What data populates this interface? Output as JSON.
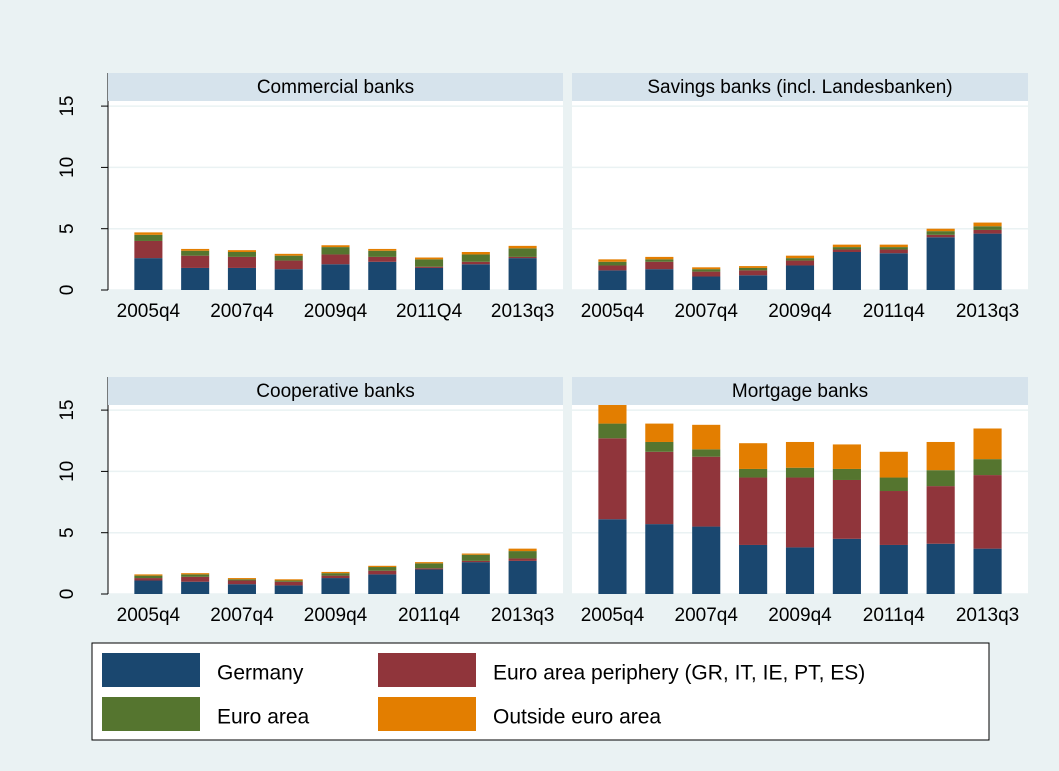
{
  "chart_data": [
    {
      "type": "bar",
      "stacked": true,
      "title": "Commercial banks",
      "categories": [
        "2005q4",
        null,
        "2007q4",
        null,
        "2009q4",
        null,
        "2011Q4",
        null,
        "2013q3"
      ],
      "ylim": [
        0,
        17.7
      ],
      "yticks": [
        0,
        5,
        10,
        15
      ],
      "grid": true,
      "series": [
        {
          "name": "Germany",
          "color": "#1a476f",
          "values": [
            2.6,
            1.8,
            1.8,
            1.7,
            2.1,
            2.3,
            1.8,
            2.1,
            2.6
          ]
        },
        {
          "name": "Euro area periphery (GR, IT, IE, PT, ES)",
          "color": "#90353b",
          "values": [
            1.4,
            1.0,
            0.9,
            0.7,
            0.8,
            0.4,
            0.1,
            0.2,
            0.1
          ]
        },
        {
          "name": "Euro area",
          "color": "#55752f",
          "values": [
            0.5,
            0.4,
            0.4,
            0.4,
            0.6,
            0.5,
            0.6,
            0.6,
            0.7
          ]
        },
        {
          "name": "Outside euro area",
          "color": "#e37e00",
          "values": [
            0.2,
            0.15,
            0.15,
            0.15,
            0.15,
            0.15,
            0.15,
            0.2,
            0.2
          ]
        }
      ]
    },
    {
      "type": "bar",
      "stacked": true,
      "title": "Savings banks (incl. Landesbanken)",
      "categories": [
        "2005q4",
        null,
        "2007q4",
        null,
        "2009q4",
        null,
        "2011q4",
        null,
        "2013q3"
      ],
      "ylim": [
        0,
        17.7
      ],
      "yticks": [
        0,
        5,
        10,
        15
      ],
      "grid": true,
      "series": [
        {
          "name": "Germany",
          "color": "#1a476f",
          "values": [
            1.6,
            1.7,
            1.1,
            1.2,
            2.0,
            3.1,
            3.0,
            4.3,
            4.6
          ]
        },
        {
          "name": "Euro area periphery (GR, IT, IE, PT, ES)",
          "color": "#90353b",
          "values": [
            0.4,
            0.6,
            0.4,
            0.4,
            0.4,
            0.2,
            0.3,
            0.2,
            0.3
          ]
        },
        {
          "name": "Euro area",
          "color": "#55752f",
          "values": [
            0.3,
            0.2,
            0.2,
            0.2,
            0.2,
            0.2,
            0.2,
            0.3,
            0.3
          ]
        },
        {
          "name": "Outside euro area",
          "color": "#e37e00",
          "values": [
            0.2,
            0.2,
            0.15,
            0.15,
            0.2,
            0.2,
            0.2,
            0.2,
            0.3
          ]
        }
      ]
    },
    {
      "type": "bar",
      "stacked": true,
      "title": "Cooperative banks",
      "categories": [
        "2005q4",
        null,
        "2007q4",
        null,
        "2009q4",
        null,
        "2011q4",
        null,
        "2013q3"
      ],
      "ylim": [
        0,
        17.7
      ],
      "yticks": [
        0,
        5,
        10,
        15
      ],
      "grid": true,
      "series": [
        {
          "name": "Germany",
          "color": "#1a476f",
          "values": [
            1.1,
            1.0,
            0.8,
            0.7,
            1.3,
            1.6,
            2.0,
            2.6,
            2.7
          ]
        },
        {
          "name": "Euro area periphery (GR, IT, IE, PT, ES)",
          "color": "#90353b",
          "values": [
            0.2,
            0.4,
            0.3,
            0.3,
            0.2,
            0.3,
            0.1,
            0.1,
            0.2
          ]
        },
        {
          "name": "Euro area",
          "color": "#55752f",
          "values": [
            0.2,
            0.2,
            0.1,
            0.1,
            0.2,
            0.3,
            0.4,
            0.5,
            0.6
          ]
        },
        {
          "name": "Outside euro area",
          "color": "#e37e00",
          "values": [
            0.1,
            0.1,
            0.1,
            0.1,
            0.1,
            0.1,
            0.1,
            0.1,
            0.2
          ]
        }
      ]
    },
    {
      "type": "bar",
      "stacked": true,
      "title": "Mortgage banks",
      "categories": [
        "2005q4",
        null,
        "2007q4",
        null,
        "2009q4",
        null,
        "2011q4",
        null,
        "2013q3"
      ],
      "ylim": [
        0,
        17.7
      ],
      "yticks": [
        0,
        5,
        10,
        15
      ],
      "grid": true,
      "series": [
        {
          "name": "Germany",
          "color": "#1a476f",
          "values": [
            6.1,
            5.7,
            5.5,
            4.0,
            3.8,
            4.5,
            4.0,
            4.1,
            3.7
          ]
        },
        {
          "name": "Euro area periphery (GR, IT, IE, PT, ES)",
          "color": "#90353b",
          "values": [
            6.6,
            5.9,
            5.7,
            5.5,
            5.7,
            4.8,
            4.4,
            4.7,
            6.0
          ]
        },
        {
          "name": "Euro area",
          "color": "#55752f",
          "values": [
            1.2,
            0.8,
            0.6,
            0.7,
            0.8,
            0.9,
            1.1,
            1.3,
            1.3
          ]
        },
        {
          "name": "Outside euro area",
          "color": "#e37e00",
          "values": [
            2.2,
            1.5,
            2.0,
            2.1,
            2.1,
            2.0,
            2.1,
            2.3,
            2.5
          ]
        }
      ]
    }
  ]
}
